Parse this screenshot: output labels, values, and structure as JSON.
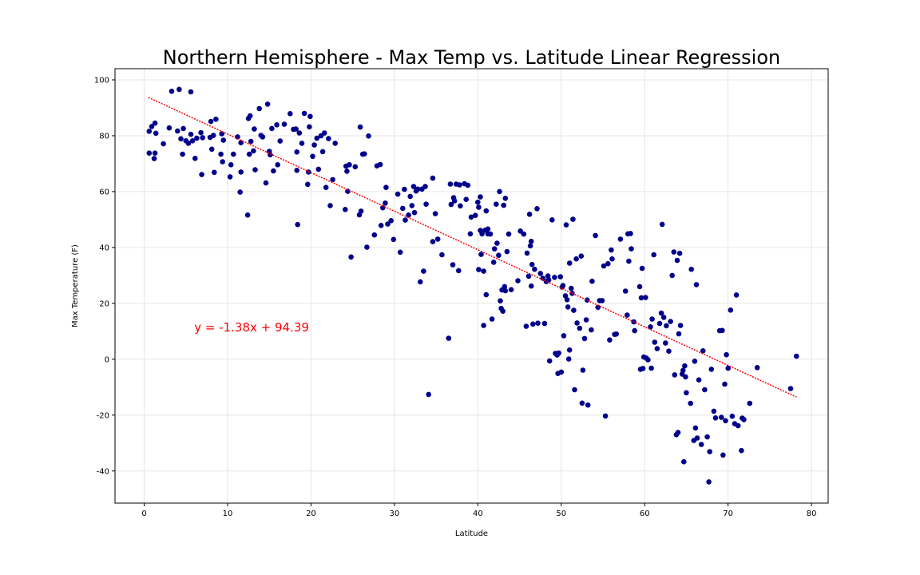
{
  "chart_data": {
    "type": "scatter",
    "title": "Northern Hemisphere - Max Temp vs. Latitude Linear Regression",
    "xlabel": "Latitude",
    "ylabel": "Max Temperature (F)",
    "xlim": [
      -3.5,
      82
    ],
    "ylim": [
      -51.5,
      104
    ],
    "xticks": [
      0,
      10,
      20,
      30,
      40,
      50,
      60,
      70,
      80
    ],
    "yticks": [
      -40,
      -20,
      0,
      20,
      40,
      60,
      80,
      100
    ],
    "grid": true,
    "point_color": "#00008b",
    "line_color": "#ff0000",
    "equation": {
      "text": "y = -1.38x + 94.39",
      "color": "#ff0000",
      "x": 6,
      "y": 10
    },
    "regression": {
      "slope": -1.38,
      "intercept": 94.39,
      "x_range": [
        0.5,
        78.2
      ]
    },
    "points": [
      [
        0.6,
        73.8
      ],
      [
        0.6,
        81.6
      ],
      [
        0.9,
        83.3
      ],
      [
        1.2,
        71.8
      ],
      [
        1.3,
        73.8
      ],
      [
        1.3,
        84.5
      ],
      [
        1.4,
        80.9
      ],
      [
        2.3,
        77.1
      ],
      [
        3.0,
        82.8
      ],
      [
        3.3,
        95.9
      ],
      [
        4.0,
        81.7
      ],
      [
        4.2,
        96.6
      ],
      [
        4.4,
        78.9
      ],
      [
        4.6,
        73.4
      ],
      [
        4.7,
        82.6
      ],
      [
        5.0,
        78.2
      ],
      [
        5.3,
        77.3
      ],
      [
        5.6,
        80.5
      ],
      [
        5.8,
        78.2
      ],
      [
        5.6,
        95.7
      ],
      [
        6.1,
        71.9
      ],
      [
        6.3,
        79.1
      ],
      [
        6.8,
        81.1
      ],
      [
        6.9,
        66.1
      ],
      [
        7.0,
        79.3
      ],
      [
        7.9,
        79.4
      ],
      [
        8.0,
        85.1
      ],
      [
        8.1,
        75.2
      ],
      [
        8.3,
        80.1
      ],
      [
        8.4,
        66.9
      ],
      [
        8.6,
        85.9
      ],
      [
        9.2,
        73.4
      ],
      [
        9.3,
        80.7
      ],
      [
        9.4,
        70.7
      ],
      [
        9.5,
        78.4
      ],
      [
        10.3,
        65.3
      ],
      [
        10.4,
        69.6
      ],
      [
        10.7,
        73.4
      ],
      [
        11.2,
        79.6
      ],
      [
        11.5,
        59.8
      ],
      [
        11.6,
        67.0
      ],
      [
        11.6,
        77.5
      ],
      [
        12.4,
        51.6
      ],
      [
        12.5,
        86.2
      ],
      [
        12.6,
        73.4
      ],
      [
        12.7,
        87.1
      ],
      [
        12.8,
        78.0
      ],
      [
        13.1,
        74.6
      ],
      [
        13.2,
        82.4
      ],
      [
        13.3,
        67.8
      ],
      [
        13.8,
        89.7
      ],
      [
        14.0,
        80.1
      ],
      [
        14.2,
        79.6
      ],
      [
        14.6,
        63.1
      ],
      [
        14.8,
        91.3
      ],
      [
        15.0,
        74.4
      ],
      [
        15.1,
        73.2
      ],
      [
        15.3,
        82.6
      ],
      [
        15.5,
        67.4
      ],
      [
        15.9,
        83.9
      ],
      [
        16.0,
        69.6
      ],
      [
        16.3,
        78.1
      ],
      [
        16.8,
        84.1
      ],
      [
        17.5,
        87.9
      ],
      [
        17.9,
        82.3
      ],
      [
        18.2,
        82.4
      ],
      [
        18.3,
        74.2
      ],
      [
        18.3,
        67.6
      ],
      [
        18.4,
        48.2
      ],
      [
        18.6,
        81.0
      ],
      [
        18.9,
        77.3
      ],
      [
        19.2,
        88.0
      ],
      [
        19.6,
        62.6
      ],
      [
        19.7,
        67.0
      ],
      [
        19.8,
        83.2
      ],
      [
        19.9,
        86.9
      ],
      [
        20.2,
        72.6
      ],
      [
        20.4,
        76.7
      ],
      [
        20.7,
        79.1
      ],
      [
        20.9,
        68.0
      ],
      [
        21.2,
        80.0
      ],
      [
        21.4,
        74.3
      ],
      [
        21.6,
        81.0
      ],
      [
        21.8,
        61.5
      ],
      [
        22.1,
        79.0
      ],
      [
        22.3,
        55.0
      ],
      [
        22.6,
        64.3
      ],
      [
        22.9,
        77.3
      ],
      [
        24.1,
        53.6
      ],
      [
        24.2,
        69.1
      ],
      [
        24.3,
        67.3
      ],
      [
        24.4,
        60.1
      ],
      [
        24.6,
        69.6
      ],
      [
        24.8,
        36.6
      ],
      [
        25.3,
        68.9
      ],
      [
        25.8,
        51.7
      ],
      [
        25.9,
        83.1
      ],
      [
        26.0,
        53.0
      ],
      [
        26.2,
        73.4
      ],
      [
        26.4,
        73.5
      ],
      [
        26.7,
        40.1
      ],
      [
        26.9,
        79.9
      ],
      [
        27.6,
        44.5
      ],
      [
        27.9,
        69.2
      ],
      [
        28.3,
        69.7
      ],
      [
        28.4,
        47.9
      ],
      [
        28.6,
        54.2
      ],
      [
        28.9,
        55.9
      ],
      [
        29.0,
        61.5
      ],
      [
        29.2,
        48.4
      ],
      [
        29.6,
        49.6
      ],
      [
        29.9,
        42.9
      ],
      [
        30.4,
        59.1
      ],
      [
        30.7,
        38.3
      ],
      [
        31.0,
        54.0
      ],
      [
        31.2,
        60.8
      ],
      [
        31.3,
        49.8
      ],
      [
        31.7,
        51.6
      ],
      [
        31.9,
        58.3
      ],
      [
        32.1,
        55.0
      ],
      [
        32.3,
        61.8
      ],
      [
        32.4,
        52.5
      ],
      [
        32.6,
        60.2
      ],
      [
        32.8,
        60.9
      ],
      [
        33.1,
        27.7
      ],
      [
        33.3,
        60.9
      ],
      [
        33.5,
        31.5
      ],
      [
        33.7,
        61.8
      ],
      [
        33.8,
        55.5
      ],
      [
        34.1,
        -12.6
      ],
      [
        34.6,
        64.8
      ],
      [
        34.6,
        42.1
      ],
      [
        34.9,
        52.1
      ],
      [
        35.2,
        43.0
      ],
      [
        35.7,
        37.4
      ],
      [
        36.5,
        7.5
      ],
      [
        36.7,
        62.7
      ],
      [
        36.8,
        55.4
      ],
      [
        37.0,
        33.8
      ],
      [
        37.1,
        57.8
      ],
      [
        37.2,
        56.7
      ],
      [
        37.4,
        62.7
      ],
      [
        37.7,
        31.7
      ],
      [
        37.8,
        62.4
      ],
      [
        37.9,
        54.9
      ],
      [
        38.4,
        62.8
      ],
      [
        38.6,
        57.2
      ],
      [
        38.8,
        62.3
      ],
      [
        39.1,
        44.9
      ],
      [
        39.2,
        50.9
      ],
      [
        39.7,
        51.5
      ],
      [
        40.0,
        56.2
      ],
      [
        40.1,
        32.1
      ],
      [
        40.1,
        54.4
      ],
      [
        40.3,
        46.1
      ],
      [
        40.3,
        58.1
      ],
      [
        40.4,
        37.5
      ],
      [
        40.5,
        44.9
      ],
      [
        40.7,
        12.1
      ],
      [
        40.7,
        31.5
      ],
      [
        40.9,
        46.2
      ],
      [
        41.0,
        53.1
      ],
      [
        41.0,
        23.1
      ],
      [
        41.2,
        46.6
      ],
      [
        41.2,
        44.9
      ],
      [
        41.5,
        44.8
      ],
      [
        41.7,
        14.4
      ],
      [
        41.9,
        34.7
      ],
      [
        42.0,
        39.5
      ],
      [
        42.2,
        55.5
      ],
      [
        42.3,
        41.5
      ],
      [
        42.5,
        37.2
      ],
      [
        42.6,
        60.0
      ],
      [
        42.7,
        20.9
      ],
      [
        42.8,
        18.2
      ],
      [
        42.9,
        24.8
      ],
      [
        43.0,
        17.2
      ],
      [
        43.1,
        55.1
      ],
      [
        43.2,
        26.0
      ],
      [
        43.3,
        57.6
      ],
      [
        43.3,
        24.5
      ],
      [
        43.5,
        38.5
      ],
      [
        43.7,
        44.8
      ],
      [
        44.0,
        24.9
      ],
      [
        44.8,
        28.1
      ],
      [
        45.1,
        45.9
      ],
      [
        45.5,
        44.8
      ],
      [
        45.8,
        11.8
      ],
      [
        45.9,
        38.0
      ],
      [
        46.1,
        29.7
      ],
      [
        46.2,
        51.9
      ],
      [
        46.3,
        40.6
      ],
      [
        46.4,
        42.2
      ],
      [
        46.4,
        26.2
      ],
      [
        46.5,
        33.9
      ],
      [
        46.6,
        12.6
      ],
      [
        46.8,
        32.2
      ],
      [
        47.1,
        53.9
      ],
      [
        47.2,
        12.9
      ],
      [
        47.5,
        30.7
      ],
      [
        47.8,
        29.0
      ],
      [
        48.0,
        12.8
      ],
      [
        48.2,
        27.8
      ],
      [
        48.4,
        29.8
      ],
      [
        48.5,
        28.4
      ],
      [
        48.6,
        -0.6
      ],
      [
        48.9,
        49.9
      ],
      [
        49.2,
        29.3
      ],
      [
        49.3,
        2.1
      ],
      [
        49.5,
        1.5
      ],
      [
        49.6,
        -5.1
      ],
      [
        49.7,
        2.2
      ],
      [
        49.9,
        29.5
      ],
      [
        50.0,
        -4.6
      ],
      [
        50.1,
        25.8
      ],
      [
        50.2,
        26.4
      ],
      [
        50.3,
        8.4
      ],
      [
        50.5,
        22.7
      ],
      [
        50.6,
        48.1
      ],
      [
        50.7,
        21.3
      ],
      [
        50.8,
        18.7
      ],
      [
        50.9,
        0.1
      ],
      [
        51.0,
        3.3
      ],
      [
        51.0,
        34.4
      ],
      [
        51.2,
        25.4
      ],
      [
        51.3,
        23.6
      ],
      [
        51.4,
        50.1
      ],
      [
        51.5,
        17.5
      ],
      [
        51.6,
        -10.9
      ],
      [
        51.8,
        35.9
      ],
      [
        51.9,
        13.0
      ],
      [
        52.2,
        11.1
      ],
      [
        52.4,
        36.9
      ],
      [
        52.5,
        -15.7
      ],
      [
        52.6,
        -3.9
      ],
      [
        52.8,
        7.4
      ],
      [
        53.0,
        14.1
      ],
      [
        53.1,
        21.2
      ],
      [
        53.2,
        -16.4
      ],
      [
        53.6,
        10.5
      ],
      [
        53.7,
        27.9
      ],
      [
        54.1,
        44.3
      ],
      [
        54.4,
        18.6
      ],
      [
        54.6,
        21.0
      ],
      [
        54.9,
        21.0
      ],
      [
        55.1,
        33.4
      ],
      [
        55.3,
        -20.3
      ],
      [
        55.6,
        34.2
      ],
      [
        55.8,
        6.9
      ],
      [
        56.0,
        39.1
      ],
      [
        56.1,
        35.9
      ],
      [
        56.4,
        8.9
      ],
      [
        56.6,
        9.0
      ],
      [
        57.1,
        43.0
      ],
      [
        57.7,
        24.4
      ],
      [
        57.9,
        15.8
      ],
      [
        58.0,
        44.9
      ],
      [
        58.1,
        35.1
      ],
      [
        58.3,
        45.0
      ],
      [
        58.4,
        39.5
      ],
      [
        58.7,
        13.4
      ],
      [
        58.8,
        10.2
      ],
      [
        59.4,
        26.0
      ],
      [
        59.5,
        -3.6
      ],
      [
        59.6,
        22.0
      ],
      [
        59.7,
        32.5
      ],
      [
        59.8,
        -3.3
      ],
      [
        59.9,
        0.8
      ],
      [
        60.1,
        22.1
      ],
      [
        60.2,
        0.4
      ],
      [
        60.4,
        -0.2
      ],
      [
        60.7,
        11.6
      ],
      [
        60.8,
        -3.2
      ],
      [
        60.9,
        14.4
      ],
      [
        61.1,
        37.4
      ],
      [
        61.2,
        6.1
      ],
      [
        61.5,
        3.8
      ],
      [
        61.8,
        12.8
      ],
      [
        62.0,
        16.5
      ],
      [
        62.1,
        48.3
      ],
      [
        62.3,
        15.0
      ],
      [
        62.5,
        5.8
      ],
      [
        62.6,
        12.0
      ],
      [
        62.9,
        2.9
      ],
      [
        63.1,
        13.5
      ],
      [
        63.3,
        30.0
      ],
      [
        63.5,
        38.4
      ],
      [
        63.6,
        -5.6
      ],
      [
        63.8,
        -27.0
      ],
      [
        63.9,
        35.4
      ],
      [
        64.0,
        -26.2
      ],
      [
        64.1,
        9.1
      ],
      [
        64.2,
        37.9
      ],
      [
        64.3,
        12.1
      ],
      [
        64.5,
        -5.3
      ],
      [
        64.6,
        -4.0
      ],
      [
        64.7,
        -36.7
      ],
      [
        64.8,
        -2.4
      ],
      [
        64.9,
        -6.3
      ],
      [
        65.0,
        -12.0
      ],
      [
        65.5,
        -15.8
      ],
      [
        65.6,
        32.2
      ],
      [
        65.9,
        -29.1
      ],
      [
        66.0,
        -0.7
      ],
      [
        66.1,
        -24.6
      ],
      [
        66.2,
        26.7
      ],
      [
        66.3,
        -28.2
      ],
      [
        66.5,
        -7.4
      ],
      [
        66.8,
        -30.5
      ],
      [
        67.0,
        3.0
      ],
      [
        67.2,
        -10.9
      ],
      [
        67.5,
        -27.8
      ],
      [
        67.7,
        -43.9
      ],
      [
        67.8,
        -33.1
      ],
      [
        68.0,
        -3.6
      ],
      [
        68.3,
        -18.6
      ],
      [
        68.5,
        -21.0
      ],
      [
        69.0,
        10.2
      ],
      [
        69.2,
        -20.8
      ],
      [
        69.3,
        10.3
      ],
      [
        69.4,
        -34.3
      ],
      [
        69.6,
        -8.9
      ],
      [
        69.7,
        -22.0
      ],
      [
        69.8,
        1.6
      ],
      [
        70.0,
        -3.2
      ],
      [
        70.3,
        17.6
      ],
      [
        70.5,
        -20.4
      ],
      [
        70.8,
        -23.1
      ],
      [
        71.0,
        23.0
      ],
      [
        71.2,
        -23.8
      ],
      [
        71.6,
        -32.7
      ],
      [
        71.7,
        -21.1
      ],
      [
        71.9,
        -21.6
      ],
      [
        72.6,
        -15.8
      ],
      [
        73.5,
        -3.0
      ],
      [
        77.5,
        -10.5
      ],
      [
        78.2,
        1.1
      ]
    ]
  }
}
